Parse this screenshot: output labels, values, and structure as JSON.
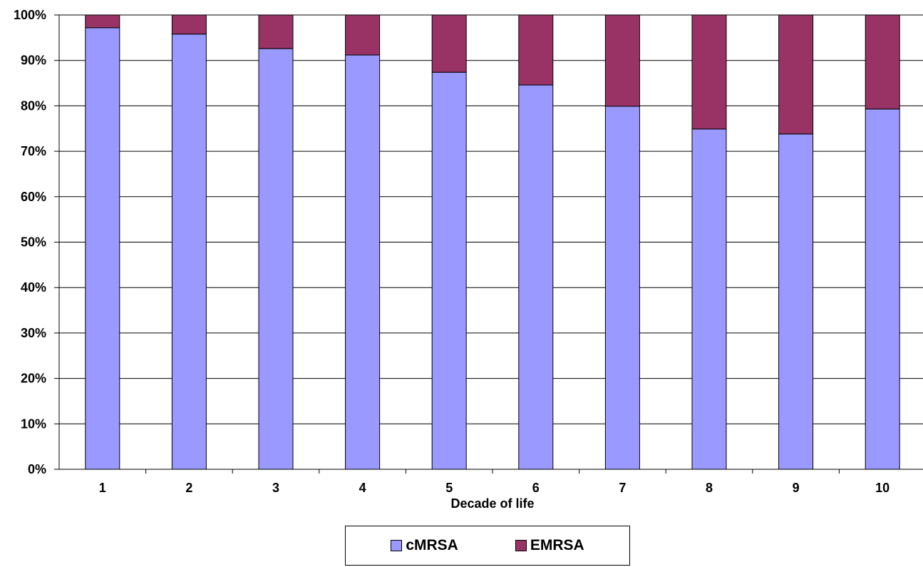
{
  "chart_data": {
    "type": "bar",
    "stacked": true,
    "categories": [
      "1",
      "2",
      "3",
      "4",
      "5",
      "6",
      "7",
      "8",
      "9",
      "10"
    ],
    "series": [
      {
        "name": "cMRSA",
        "color": "#9999FF",
        "values": [
          97.2,
          95.8,
          92.6,
          91.2,
          87.4,
          84.6,
          79.9,
          74.9,
          73.8,
          79.3
        ]
      },
      {
        "name": "EMRSA",
        "color": "#993366",
        "values": [
          2.8,
          4.2,
          7.4,
          8.8,
          12.6,
          15.4,
          20.1,
          25.1,
          26.2,
          20.7
        ]
      }
    ],
    "xlabel": "Decade of life",
    "ylabel": "",
    "ylim": [
      0,
      100
    ],
    "yticks": [
      "0%",
      "10%",
      "20%",
      "30%",
      "40%",
      "50%",
      "60%",
      "70%",
      "80%",
      "90%",
      "100%"
    ],
    "grid": true,
    "legend_position": "bottom"
  }
}
